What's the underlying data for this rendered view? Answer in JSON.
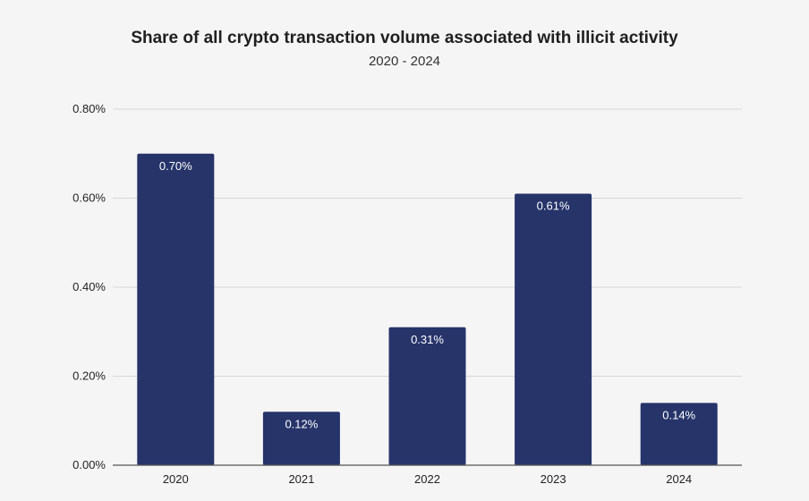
{
  "chart_data": {
    "type": "bar",
    "title": "Share of all crypto transaction volume associated with illicit activity",
    "subtitle": "2020 - 2024",
    "xlabel": "",
    "ylabel": "",
    "categories": [
      "2020",
      "2021",
      "2022",
      "2023",
      "2024"
    ],
    "values": [
      0.7,
      0.12,
      0.31,
      0.61,
      0.14
    ],
    "data_labels": [
      "0.70%",
      "0.12%",
      "0.31%",
      "0.61%",
      "0.14%"
    ],
    "ylim": [
      0,
      0.8
    ],
    "yticks": [
      0,
      0.2,
      0.4,
      0.6,
      0.8
    ],
    "ytick_labels": [
      "0.00%",
      "0.20%",
      "0.40%",
      "0.60%",
      "0.80%"
    ],
    "grid": true,
    "legend": "none",
    "bar_color": "#26346a",
    "grid_color": "#d6d6d6",
    "axis_color": "#555555"
  }
}
